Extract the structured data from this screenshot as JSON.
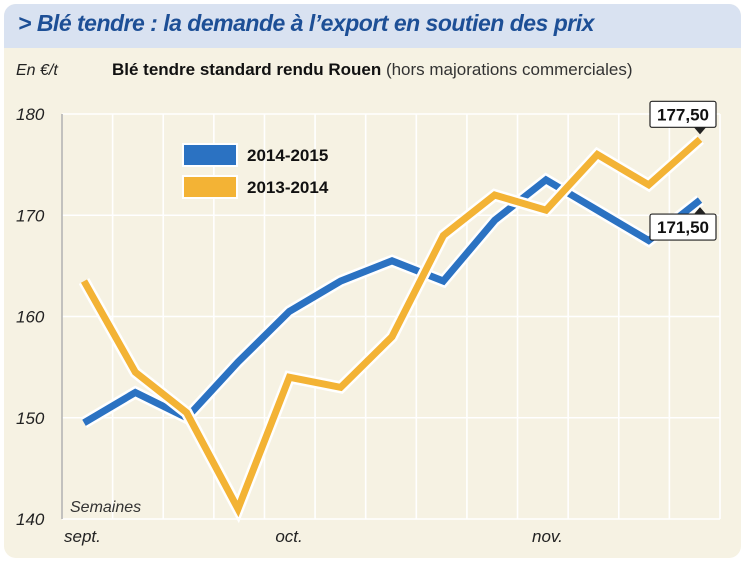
{
  "header": {
    "title": "> Blé tendre : la demande à l’export en soutien des prix",
    "unit_label": "En €/t",
    "subtitle_main": "Blé tendre standard rendu Rouen",
    "subtitle_note": "(hors majorations commerciales)"
  },
  "chart_data": {
    "type": "line",
    "title": "Blé tendre standard rendu Rouen (hors majorations commerciales)",
    "ylabel": "En €/t",
    "xlabel": "Semaines",
    "ylim": [
      140,
      180
    ],
    "yticks": [
      140,
      150,
      160,
      170,
      180
    ],
    "xlim": [
      0,
      12
    ],
    "x_month_labels": [
      {
        "label": "sept.",
        "x": 0
      },
      {
        "label": "oct.",
        "x": 4
      },
      {
        "label": "nov.",
        "x": 9
      }
    ],
    "grid": true,
    "legend_position": "top-left",
    "series": [
      {
        "name": "2014-2015",
        "color": "#2b72c2",
        "x": [
          0,
          1,
          2,
          3,
          4,
          5,
          6,
          7,
          8,
          9,
          10,
          11,
          12
        ],
        "values": [
          149.5,
          152.5,
          150,
          155.5,
          160.5,
          163.5,
          165.5,
          163.5,
          169.5,
          173.5,
          170.5,
          167.5,
          171.5
        ]
      },
      {
        "name": "2013-2014",
        "color": "#f3b335",
        "x": [
          0,
          1,
          2,
          3,
          4,
          5,
          6,
          7,
          8,
          9,
          10,
          11,
          12
        ],
        "values": [
          163.5,
          154.5,
          150.5,
          141,
          154,
          153,
          158,
          168,
          172,
          170.5,
          176,
          173,
          177.5
        ]
      }
    ],
    "annotations": [
      {
        "text": "177,50",
        "series": "2013-2014",
        "position": "above"
      },
      {
        "text": "171,50",
        "series": "2014-2015",
        "position": "below"
      }
    ]
  }
}
